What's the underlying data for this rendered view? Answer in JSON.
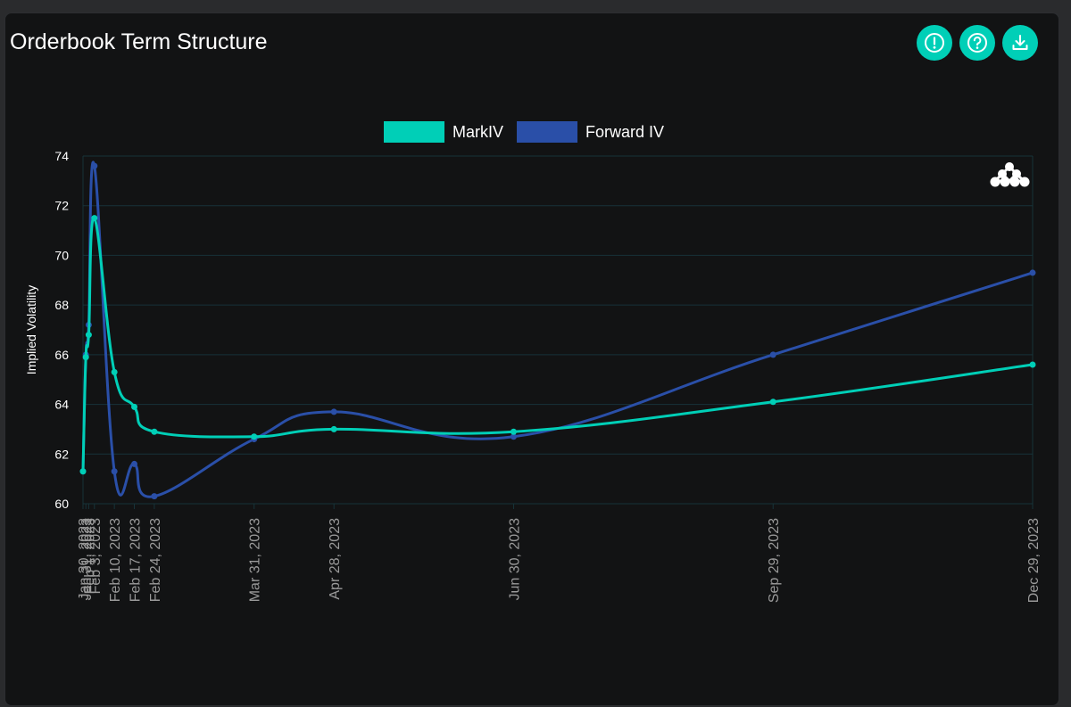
{
  "header": {
    "title": "Orderbook Term Structure",
    "buttons": [
      {
        "icon": "alert-circle-icon"
      },
      {
        "icon": "help-circle-icon"
      },
      {
        "icon": "download-icon"
      }
    ]
  },
  "colors": {
    "accent": "#00cfb7",
    "forward": "#2a4fa8",
    "grid": "#173339",
    "background": "#121314"
  },
  "chart_data": {
    "type": "line",
    "title": "",
    "xlabel": "",
    "ylabel": "Implied Volatility",
    "ylim": [
      60,
      74
    ],
    "yticks": [
      60,
      62,
      64,
      66,
      68,
      70,
      72,
      74
    ],
    "grid": true,
    "legend": "top-center",
    "x": [
      "Jan 30, 2023",
      "Jan 31, 2023",
      "Feb 1, 2023",
      "Feb 3, 2023",
      "Feb 10, 2023",
      "Feb 17, 2023",
      "Feb 24, 2023",
      "Mar 31, 2023",
      "Apr 28, 2023",
      "Jun 30, 2023",
      "Sep 29, 2023",
      "Dec 29, 2023"
    ],
    "x_days": [
      0,
      1,
      2,
      4,
      11,
      18,
      25,
      60,
      88,
      151,
      242,
      333
    ],
    "series": [
      {
        "name": "MarkIV",
        "color": "#00cfb7",
        "values": [
          61.3,
          65.9,
          66.8,
          71.5,
          65.3,
          63.9,
          62.9,
          62.7,
          63.0,
          62.9,
          64.1,
          65.6
        ]
      },
      {
        "name": "Forward IV",
        "color": "#2a4fa8",
        "values": [
          61.3,
          66.0,
          67.2,
          73.6,
          61.3,
          61.6,
          60.3,
          62.6,
          63.7,
          62.7,
          66.0,
          69.3
        ]
      }
    ]
  }
}
